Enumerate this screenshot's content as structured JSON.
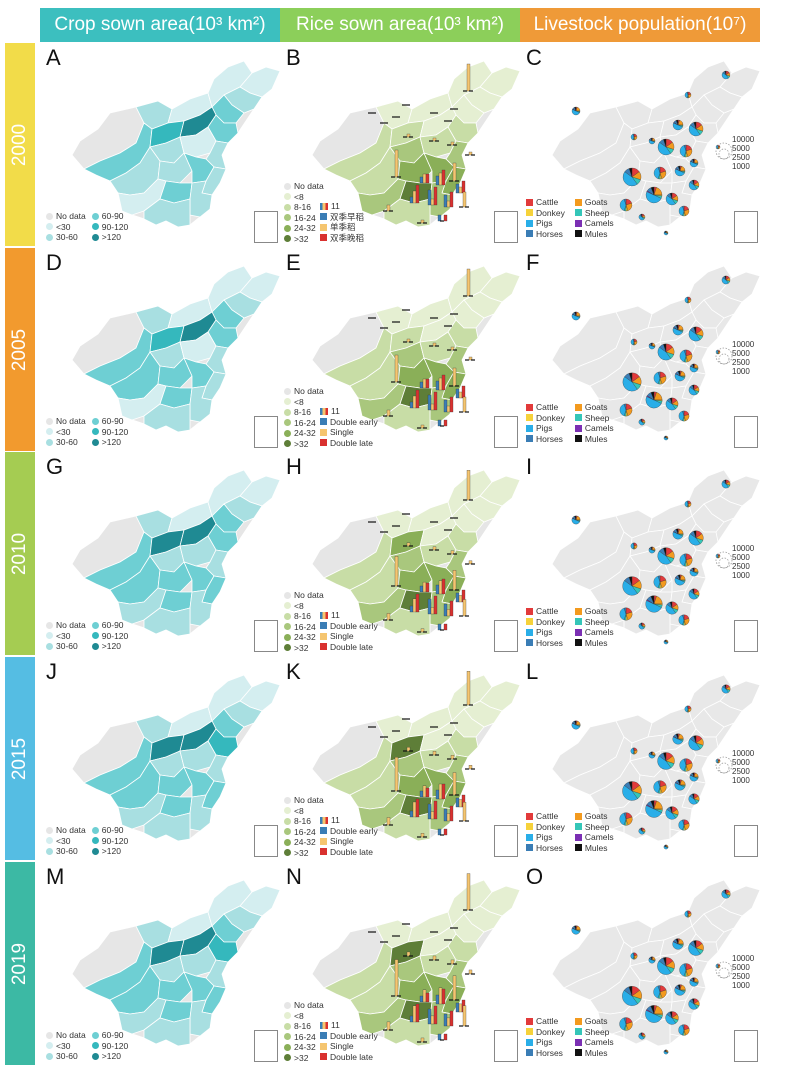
{
  "headers": [
    {
      "text": "Crop sown area(10³ km²)",
      "color": "#3cbfbf"
    },
    {
      "text": "Rice sown area(10³ km²)",
      "color": "#8ccf5a"
    },
    {
      "text": "Livestock population(10⁷)",
      "color": "#ef9a38"
    }
  ],
  "years": [
    {
      "label": "2000",
      "color": "#f2dc49"
    },
    {
      "label": "2005",
      "color": "#f29a2e"
    },
    {
      "label": "2010",
      "color": "#a5cc52"
    },
    {
      "label": "2015",
      "color": "#55bde3"
    },
    {
      "label": "2019",
      "color": "#3cb9a4"
    }
  ],
  "panels": [
    [
      "A",
      "B",
      "C"
    ],
    [
      "D",
      "E",
      "F"
    ],
    [
      "G",
      "H",
      "I"
    ],
    [
      "J",
      "K",
      "L"
    ],
    [
      "M",
      "N",
      "O"
    ]
  ],
  "crop_legend": {
    "classes": [
      "No data",
      "<30",
      "30-60",
      "60-90",
      "90-120",
      ">120"
    ],
    "colors": [
      "#e6e6e6",
      "#d4eef0",
      "#a8dfe1",
      "#6ecfd3",
      "#35b8bd",
      "#1f8a93"
    ]
  },
  "rice_legend": {
    "classes": [
      "No data",
      "<8",
      "8-16",
      "16-24",
      "24-32",
      ">32"
    ],
    "colors": [
      "#e6e6e6",
      "#e5efd2",
      "#c8dda6",
      "#a9c77d",
      "#8aaf58",
      "#5e7e38"
    ],
    "bar_scale_label": "11",
    "bar_types_en": [
      "Double early",
      "Single",
      "Double late"
    ],
    "bar_types_zh": [
      "双季早稻",
      "单季稻",
      "双季晚稻"
    ],
    "bar_colors": [
      "#3a7db5",
      "#f5c56f",
      "#d9312f"
    ]
  },
  "livestock_legend": {
    "animals": [
      "Cattle",
      "Goats",
      "Donkey",
      "Sheep",
      "Pigs",
      "Camels",
      "Horses",
      "Mules"
    ],
    "colors": [
      "#e23a3a",
      "#f39a1e",
      "#f6d23a",
      "#34c6b8",
      "#29aee8",
      "#7b2fb3",
      "#3a7db5",
      "#111111"
    ],
    "size_labels": [
      "10000",
      "5000",
      "2500",
      "1000"
    ]
  },
  "crop_region_classes": [
    [
      0,
      2,
      1,
      1,
      1,
      2,
      3,
      3,
      4,
      5,
      3,
      2,
      2,
      1,
      2,
      2,
      3,
      2,
      1,
      3,
      2,
      2
    ],
    [
      0,
      2,
      1,
      1,
      1,
      2,
      3,
      3,
      4,
      5,
      3,
      3,
      2,
      1,
      2,
      3,
      3,
      2,
      1,
      3,
      2,
      2
    ],
    [
      0,
      2,
      1,
      1,
      1,
      2,
      3,
      3,
      5,
      5,
      3,
      3,
      2,
      2,
      2,
      3,
      3,
      3,
      2,
      3,
      2,
      2
    ],
    [
      0,
      2,
      1,
      1,
      1,
      2,
      3,
      3,
      5,
      5,
      4,
      3,
      2,
      2,
      2,
      3,
      3,
      3,
      2,
      3,
      2,
      2
    ],
    [
      0,
      2,
      1,
      1,
      1,
      2,
      3,
      3,
      5,
      5,
      4,
      3,
      2,
      2,
      2,
      3,
      3,
      3,
      2,
      3,
      2,
      2
    ]
  ],
  "rice_region_classes": [
    [
      0,
      1,
      1,
      1,
      1,
      1,
      1,
      2,
      2,
      1,
      2,
      2,
      3,
      2,
      3,
      4,
      4,
      4,
      3,
      5,
      3,
      2
    ],
    [
      0,
      1,
      1,
      1,
      1,
      1,
      1,
      2,
      2,
      1,
      2,
      2,
      3,
      2,
      3,
      4,
      4,
      4,
      3,
      5,
      3,
      2
    ],
    [
      0,
      1,
      1,
      1,
      1,
      1,
      1,
      2,
      4,
      1,
      2,
      2,
      3,
      2,
      3,
      4,
      4,
      4,
      3,
      5,
      3,
      2
    ],
    [
      0,
      1,
      1,
      1,
      1,
      1,
      1,
      2,
      5,
      1,
      2,
      2,
      3,
      2,
      3,
      4,
      4,
      4,
      3,
      5,
      3,
      2
    ],
    [
      0,
      1,
      1,
      1,
      1,
      1,
      1,
      2,
      5,
      1,
      2,
      2,
      3,
      2,
      3,
      4,
      4,
      4,
      3,
      5,
      3,
      2
    ]
  ]
}
